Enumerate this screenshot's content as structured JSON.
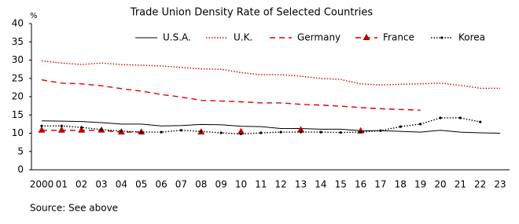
{
  "chart_data": {
    "type": "line",
    "title": "Trade Union Density Rate of Selected Countries",
    "y_label": "%",
    "source": "Source: See above",
    "categories": [
      "2000",
      "01",
      "02",
      "03",
      "04",
      "05",
      "06",
      "07",
      "08",
      "09",
      "10",
      "11",
      "12",
      "13",
      "14",
      "15",
      "16",
      "17",
      "18",
      "19",
      "20",
      "21",
      "22",
      "23"
    ],
    "ylim": [
      0,
      40
    ],
    "yticks": [
      0,
      5,
      10,
      15,
      20,
      25,
      30,
      35,
      40
    ],
    "series": [
      {
        "name": "U.S.A.",
        "color": "#000000",
        "style": "solid",
        "marker": "none",
        "values": [
          13.4,
          13.3,
          13.2,
          12.9,
          12.5,
          12.5,
          12.0,
          12.1,
          12.4,
          12.3,
          11.9,
          11.8,
          11.3,
          11.3,
          11.1,
          11.1,
          10.7,
          10.7,
          10.5,
          10.3,
          10.8,
          10.3,
          10.1,
          10.0
        ]
      },
      {
        "name": "U.K.",
        "color": "#e00000",
        "style": "dotted",
        "marker": "none",
        "values": [
          29.8,
          29.2,
          28.8,
          29.2,
          28.8,
          28.6,
          28.4,
          28.0,
          27.6,
          27.5,
          26.6,
          26.0,
          26.0,
          25.6,
          25.0,
          24.7,
          23.5,
          23.2,
          23.4,
          23.5,
          23.7,
          23.1,
          22.3,
          22.3
        ]
      },
      {
        "name": "Germany",
        "color": "#e00000",
        "style": "dashed",
        "marker": "none",
        "values": [
          24.6,
          23.7,
          23.5,
          23.0,
          22.2,
          21.5,
          20.6,
          19.9,
          19.0,
          18.8,
          18.6,
          18.3,
          18.3,
          17.9,
          17.7,
          17.4,
          17.0,
          16.7,
          16.5,
          16.3,
          null,
          null,
          null,
          null
        ]
      },
      {
        "name": "France",
        "color": "#c00000",
        "style": "dashed",
        "marker": "triangle",
        "values": [
          10.8,
          10.8,
          10.8,
          10.8,
          10.3,
          10.3,
          null,
          null,
          10.3,
          null,
          10.4,
          null,
          null,
          10.9,
          null,
          null,
          10.6,
          null,
          null,
          null,
          null,
          null,
          null,
          null
        ]
      },
      {
        "name": "Korea",
        "color": "#000000",
        "style": "dotted",
        "marker": "dot",
        "values": [
          12.0,
          12.0,
          11.6,
          11.0,
          10.6,
          10.3,
          10.3,
          10.8,
          10.5,
          10.1,
          9.8,
          10.1,
          10.3,
          10.3,
          10.3,
          10.2,
          10.3,
          10.7,
          11.8,
          12.5,
          14.2,
          14.2,
          13.1,
          null
        ]
      }
    ]
  }
}
